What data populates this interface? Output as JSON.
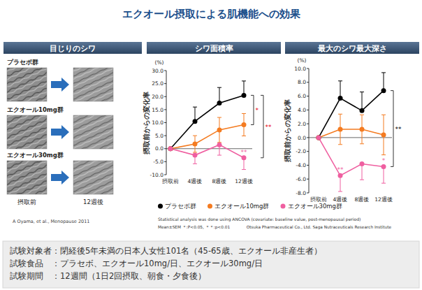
{
  "header": {
    "title": "エクオール摂取による肌機能への効果"
  },
  "photo_panel": {
    "title": "目じりのシワ",
    "groups": [
      "プラセボ群",
      "エクオール10mg群",
      "エクオール30mg群"
    ],
    "before": "摂取前",
    "after": "12週後",
    "citation": "A Oyama, et al., Menopause 2011"
  },
  "chart_data": [
    {
      "type": "line",
      "title": "シワ面積率",
      "y_label": "摂取前からの変化率",
      "y_unit": "(%)",
      "categories": [
        "摂取前",
        "4週後",
        "8週後",
        "12週後"
      ],
      "series": [
        {
          "name": "プラセボ群",
          "color": "#000000",
          "values": [
            0,
            10.5,
            17.5,
            20.5
          ],
          "errors": [
            null,
            5.5,
            6,
            5.5
          ]
        },
        {
          "name": "エクオール10mg群",
          "color": "#f47b20",
          "values": [
            0,
            1.8,
            7.2,
            9.2
          ],
          "errors": [
            null,
            3.2,
            4.8,
            4.3
          ]
        },
        {
          "name": "エクオール30mg群",
          "color": "#ef5fa0",
          "values": [
            0,
            -2.5,
            1.5,
            -3.5
          ],
          "errors": [
            null,
            3.3,
            4,
            4.5
          ]
        }
      ],
      "ylim": [
        -10,
        30
      ],
      "yticks": [
        {
          "value": -10,
          "label": "-10.0"
        },
        {
          "value": -5,
          "label": "-5.0"
        },
        {
          "value": 0,
          "label": "0.0"
        },
        {
          "value": 5,
          "label": "5.0"
        },
        {
          "value": 10,
          "label": "10.0"
        },
        {
          "value": 15,
          "label": "15.0"
        },
        {
          "value": 20,
          "label": "20.0"
        },
        {
          "value": 25,
          "label": "25.0"
        },
        {
          "value": 30,
          "label": "30.0"
        }
      ],
      "marker": "circle",
      "grid": false,
      "legend": "bottom",
      "annotations": [
        {
          "text": "*",
          "color": "#e60012",
          "category": "12週後",
          "series": [
            "プラセボ群",
            "エクオール10mg群"
          ]
        },
        {
          "text": "**",
          "color": "#e60012",
          "category": "12週後",
          "series": [
            "プラセボ群",
            "エクオール30mg群"
          ]
        },
        {
          "text": "**",
          "color": "#ef5fa0",
          "category": "12週後",
          "series": [
            "エクオール30mg群"
          ]
        }
      ]
    },
    {
      "type": "line",
      "title": "最大のシワ最大深さ",
      "y_label": "摂取前からの変化率",
      "y_unit": "(%)",
      "categories": [
        "摂取前",
        "4週後",
        "8週後",
        "12週後"
      ],
      "series": [
        {
          "name": "プラセボ群",
          "color": "#000000",
          "values": [
            0,
            5.7,
            3.9,
            6.8
          ],
          "errors": [
            null,
            2.5,
            2.7,
            2.6
          ]
        },
        {
          "name": "エクオール10mg群",
          "color": "#f47b20",
          "values": [
            0,
            1.2,
            1.2,
            0.4
          ],
          "errors": [
            null,
            2.2,
            2.1,
            2.9
          ]
        },
        {
          "name": "エクオール30mg群",
          "color": "#ef5fa0",
          "values": [
            0,
            -5.5,
            -3.8,
            -4.2
          ],
          "errors": [
            null,
            2.3,
            2.3,
            2.4
          ]
        }
      ],
      "ylim": [
        -8,
        10
      ],
      "yticks": [
        {
          "value": -8,
          "label": "-8.0"
        },
        {
          "value": -6,
          "label": "-6.0"
        },
        {
          "value": -4,
          "label": "-4.0"
        },
        {
          "value": -2,
          "label": "-2.0"
        },
        {
          "value": 0,
          "label": "0.0"
        },
        {
          "value": 2,
          "label": "2.0"
        },
        {
          "value": 4,
          "label": "4.0"
        },
        {
          "value": 6,
          "label": "6.0"
        },
        {
          "value": 8,
          "label": "8.0"
        },
        {
          "value": 10,
          "label": "10.0"
        }
      ],
      "marker": "circle",
      "grid": false,
      "legend": "bottom",
      "annotations": [
        {
          "text": "**",
          "color": "#000000",
          "category": "12週後",
          "series": [
            "プラセボ群",
            "エクオール30mg群"
          ]
        },
        {
          "text": "**",
          "color": "#ef5fa0",
          "category": "4週後",
          "series": [
            "エクオール30mg群"
          ]
        },
        {
          "text": "*",
          "color": "#ef5fa0",
          "category": "12週後",
          "series": [
            "エクオール30mg群"
          ]
        }
      ]
    }
  ],
  "notes": {
    "method": "Statistical analysis was done using ANCOVA (covariate: baseline value, post-menopausal period)",
    "stats": "Mean±SEM ＊:P<0.05, ＊＊:p<0.01",
    "source": "Otsuka Pharmaceutical Co., Ltd.  Saga Nutraceuticals Research Institute"
  },
  "study_info": [
    "試験対象者：閉経後5年未満の日本人女性101名（45-65歳、エクオール非産生者）",
    "試験食品　：プラセボ、エクオール10mg/日、エクオール30mg/日",
    "試験期間　：12週間（1日2回摂取、朝食・夕食後）"
  ]
}
